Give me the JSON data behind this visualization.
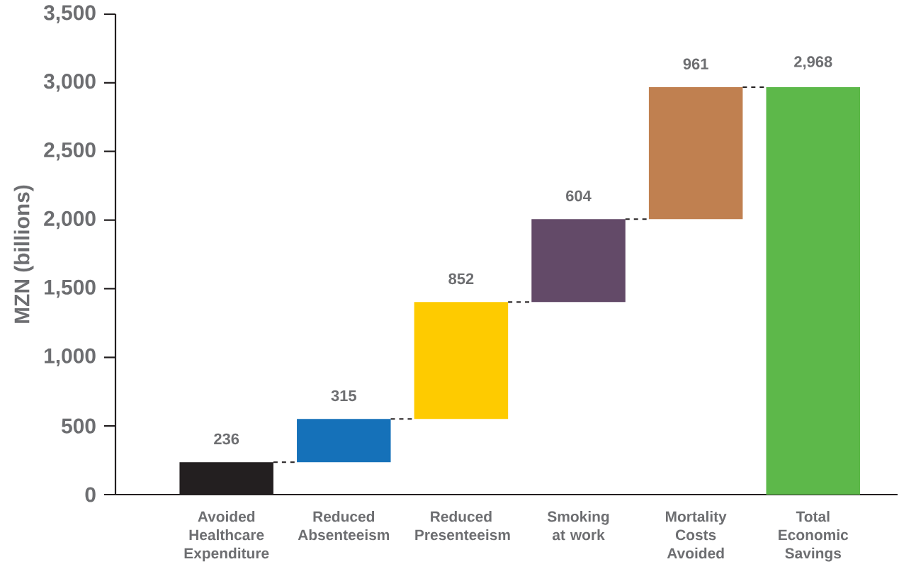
{
  "chart_data": {
    "type": "bar",
    "ylabel": "MZN (billions)",
    "categories": [
      "Avoided Healthcare Expenditure",
      "Reduced Absenteeism",
      "Reduced Presenteeism",
      "Smoking at work",
      "Mortality Costs Avoided",
      "Total Economic Savings"
    ],
    "values": [
      236,
      315,
      852,
      604,
      961,
      2968
    ],
    "base": [
      0,
      236,
      551,
      1403,
      2007,
      0
    ],
    "colors": [
      "#231f20",
      "#1571b9",
      "#fecb00",
      "#634a68",
      "#c08050",
      "#5db84a"
    ],
    "value_labels": [
      "236",
      "315",
      "852",
      "604",
      "961",
      "2,968"
    ],
    "ylim": [
      0,
      3500
    ],
    "yticks": [
      0,
      {
        "value": 500,
        "label": "500"
      },
      {
        "value": 1000,
        "label": "1,000"
      },
      {
        "value": 1500,
        "label": "1,500"
      },
      {
        "value": 2000,
        "label": "2,000"
      },
      {
        "value": 2500,
        "label": "2,500"
      },
      {
        "value": 3000,
        "label": "3,000"
      },
      {
        "value": 3500,
        "label": "3,500"
      }
    ],
    "grid": false
  }
}
